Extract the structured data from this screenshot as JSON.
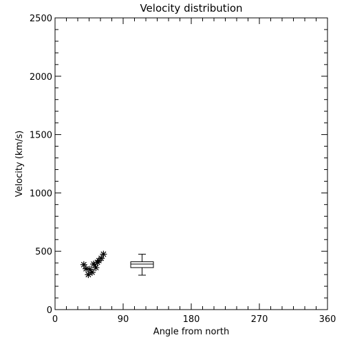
{
  "chart_data": {
    "type": "scatter",
    "title": "Velocity distribution",
    "xlabel": "Angle from north",
    "ylabel": "Velocity (km/s)",
    "xlim": [
      0,
      360
    ],
    "ylim": [
      0,
      2500
    ],
    "x_ticks": [
      0,
      90,
      180,
      270,
      360
    ],
    "y_ticks": [
      0,
      500,
      1000,
      1500,
      2000,
      2500
    ],
    "x_tick_labels": [
      "0",
      "90",
      "180",
      "270",
      "360"
    ],
    "y_tick_labels": [
      "0",
      "500",
      "1000",
      "1500",
      "2000",
      "2500"
    ],
    "grid": false,
    "marker": "asterisk",
    "points": [
      {
        "x": 38,
        "y": 385
      },
      {
        "x": 41,
        "y": 350
      },
      {
        "x": 44,
        "y": 300
      },
      {
        "x": 46,
        "y": 345
      },
      {
        "x": 49,
        "y": 320
      },
      {
        "x": 51,
        "y": 390
      },
      {
        "x": 54,
        "y": 360
      },
      {
        "x": 56,
        "y": 405
      },
      {
        "x": 58,
        "y": 420
      },
      {
        "x": 61,
        "y": 440
      },
      {
        "x": 64,
        "y": 475
      }
    ],
    "boxplot": {
      "x": 115,
      "width": 30,
      "min": 295,
      "q1": 360,
      "median": 390,
      "q3": 410,
      "max": 475,
      "whisker_width": 10
    }
  }
}
